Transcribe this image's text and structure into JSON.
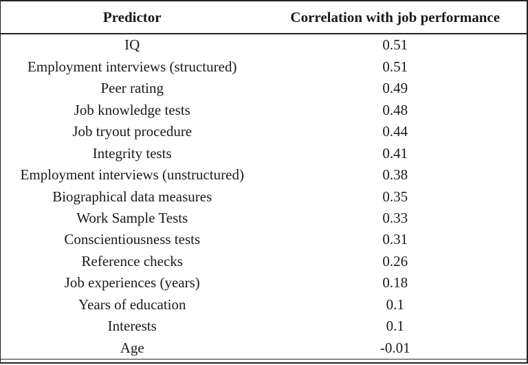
{
  "table": {
    "columns": [
      "Predictor",
      "Correlation with job performance"
    ],
    "rows": [
      {
        "predictor": "IQ",
        "correlation": "0.51"
      },
      {
        "predictor": "Employment interviews (structured)",
        "correlation": "0.51"
      },
      {
        "predictor": "Peer rating",
        "correlation": "0.49"
      },
      {
        "predictor": "Job knowledge tests",
        "correlation": "0.48"
      },
      {
        "predictor": "Job tryout procedure",
        "correlation": "0.44"
      },
      {
        "predictor": "Integrity tests",
        "correlation": "0.41"
      },
      {
        "predictor": "Employment interviews (unstructured)",
        "correlation": "0.38"
      },
      {
        "predictor": "Biographical data measures",
        "correlation": "0.35"
      },
      {
        "predictor": "Work Sample Tests",
        "correlation": "0.33"
      },
      {
        "predictor": "Conscientiousness tests",
        "correlation": "0.31"
      },
      {
        "predictor": "Reference checks",
        "correlation": "0.26"
      },
      {
        "predictor": "Job experiences (years)",
        "correlation": "0.18"
      },
      {
        "predictor": "Years of education",
        "correlation": "0.1"
      },
      {
        "predictor": "Interests",
        "correlation": "0.1"
      },
      {
        "predictor": "Age",
        "correlation": "-0.01"
      }
    ]
  },
  "chart_data": {
    "type": "table",
    "title": "",
    "columns": [
      "Predictor",
      "Correlation with job performance"
    ],
    "rows": [
      [
        "IQ",
        0.51
      ],
      [
        "Employment interviews (structured)",
        0.51
      ],
      [
        "Peer rating",
        0.49
      ],
      [
        "Job knowledge tests",
        0.48
      ],
      [
        "Job tryout procedure",
        0.44
      ],
      [
        "Integrity tests",
        0.41
      ],
      [
        "Employment interviews (unstructured)",
        0.38
      ],
      [
        "Biographical data measures",
        0.35
      ],
      [
        "Work Sample Tests",
        0.33
      ],
      [
        "Conscientiousness tests",
        0.31
      ],
      [
        "Reference checks",
        0.26
      ],
      [
        "Job experiences (years)",
        0.18
      ],
      [
        "Years of education",
        0.1
      ],
      [
        "Interests",
        0.1
      ],
      [
        "Age",
        -0.01
      ]
    ]
  },
  "colors": {
    "text": "#1a1a1a",
    "border": "#222222",
    "background": "#ffffff"
  }
}
